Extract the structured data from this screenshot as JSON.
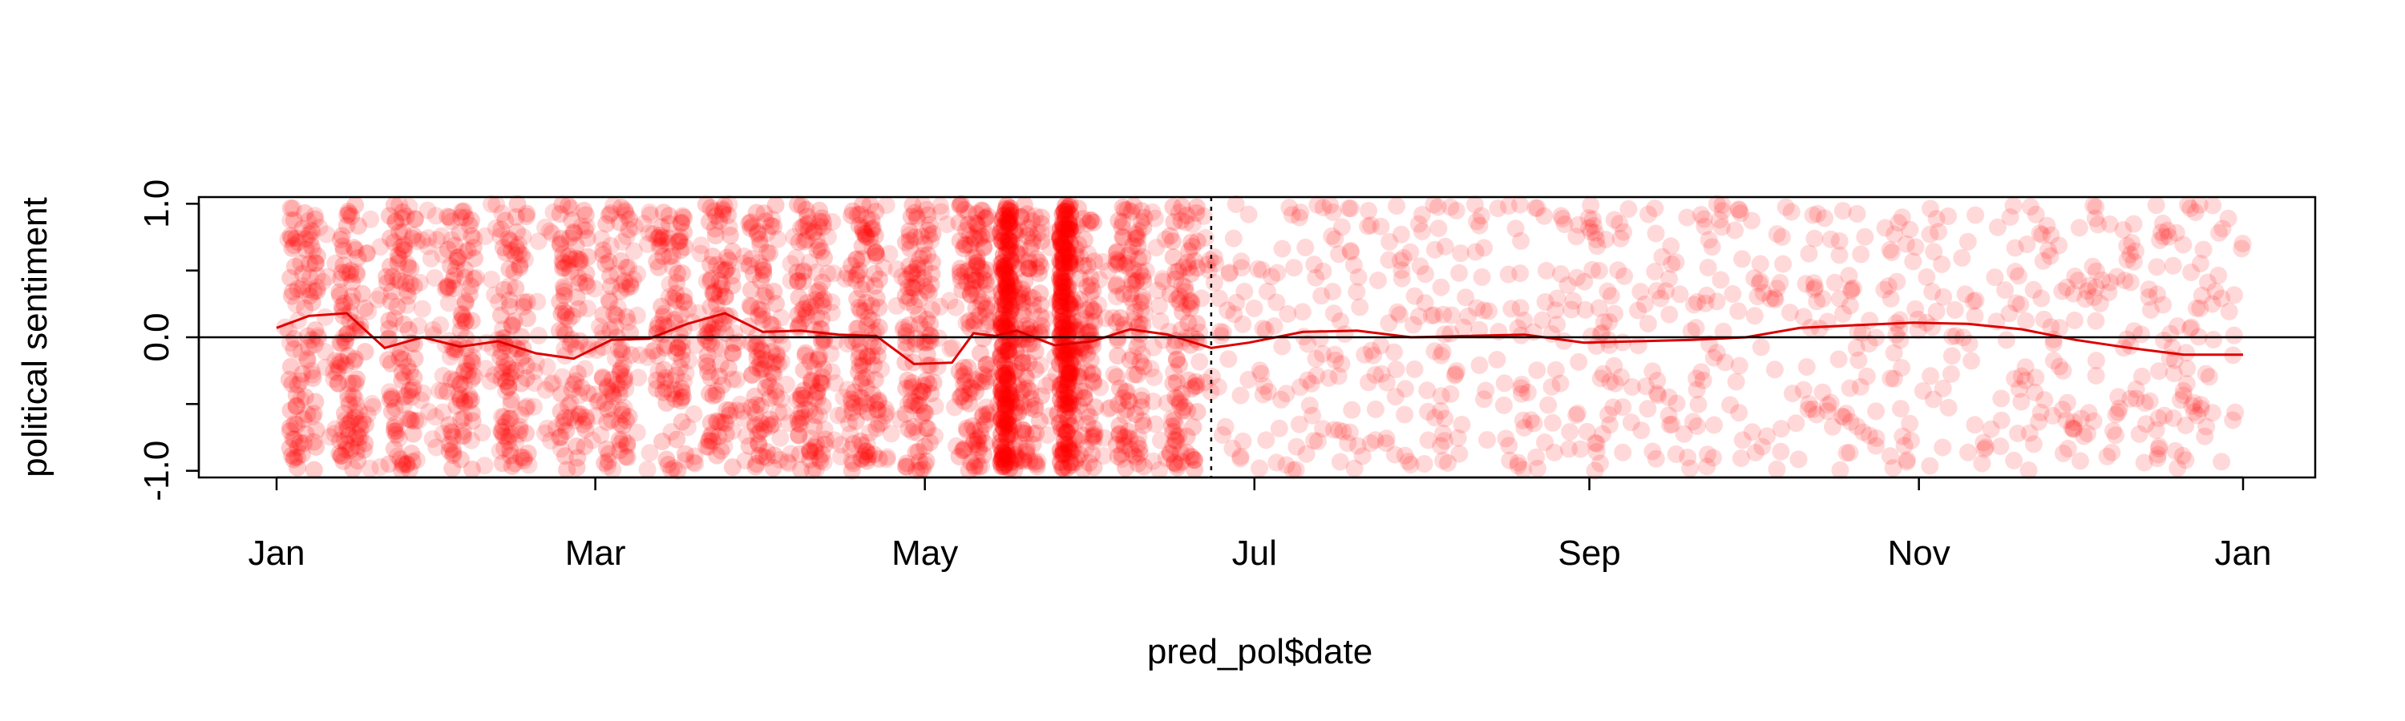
{
  "chart_data": {
    "type": "scatter",
    "title": "",
    "xlabel": "pred_pol$date",
    "ylabel": "political sentiment",
    "x_ticks": [
      "Jan",
      "Mar",
      "May",
      "Jul",
      "Sep",
      "Nov",
      "Jan"
    ],
    "y_ticks": [
      "-1.0",
      "-0.5",
      "0.0",
      "0.5",
      "1.0"
    ],
    "y_tick_labels_shown": [
      "-1.0",
      "0.0",
      "1.0"
    ],
    "ylim": [
      -1.05,
      1.05
    ],
    "xlim": [
      "2017-01-01",
      "2017-12-31"
    ],
    "grid": false,
    "legend": "none",
    "point_color": "#ff0000",
    "point_alpha": 0.15,
    "line_color": "#dd0000",
    "reference_hline": 0,
    "reference_vline": "2017-06-23",
    "series": [
      {
        "type": "line",
        "x": [
          "2017-01-01",
          "2017-01-07",
          "2017-01-14",
          "2017-01-21",
          "2017-01-28",
          "2017-02-04",
          "2017-02-11",
          "2017-02-18",
          "2017-02-25",
          "2017-03-04",
          "2017-03-11",
          "2017-03-18",
          "2017-03-25",
          "2017-04-01",
          "2017-04-08",
          "2017-04-15",
          "2017-04-22",
          "2017-04-29",
          "2017-05-06",
          "2017-05-10",
          "2017-05-14",
          "2017-05-18",
          "2017-05-25",
          "2017-06-01",
          "2017-06-08",
          "2017-06-15",
          "2017-06-23",
          "2017-06-30",
          "2017-07-10",
          "2017-07-20",
          "2017-07-30",
          "2017-08-10",
          "2017-08-20",
          "2017-08-31",
          "2017-09-10",
          "2017-09-20",
          "2017-09-30",
          "2017-10-10",
          "2017-10-20",
          "2017-10-31",
          "2017-11-10",
          "2017-11-20",
          "2017-11-30",
          "2017-12-10",
          "2017-12-20",
          "2017-12-31"
        ],
        "y": [
          0.07,
          0.16,
          0.18,
          -0.08,
          0.0,
          -0.07,
          -0.03,
          -0.12,
          -0.16,
          -0.02,
          -0.01,
          0.1,
          0.18,
          0.04,
          0.05,
          0.02,
          0.01,
          -0.2,
          -0.19,
          0.03,
          0.01,
          0.05,
          -0.06,
          -0.03,
          0.06,
          0.02,
          -0.08,
          -0.04,
          0.04,
          0.05,
          0.0,
          0.01,
          0.02,
          -0.04,
          -0.03,
          -0.02,
          0.0,
          0.07,
          0.09,
          0.11,
          0.1,
          0.06,
          -0.02,
          -0.08,
          -0.13,
          -0.13
        ]
      }
    ],
    "bands": [
      {
        "x": "2017-01-06",
        "density": 0.55
      },
      {
        "x": "2017-01-15",
        "density": 0.6
      },
      {
        "x": "2017-01-24",
        "density": 0.6
      },
      {
        "x": "2017-02-04",
        "density": 0.55
      },
      {
        "x": "2017-02-14",
        "density": 0.55
      },
      {
        "x": "2017-02-25",
        "density": 0.55
      },
      {
        "x": "2017-03-05",
        "density": 0.5
      },
      {
        "x": "2017-03-15",
        "density": 0.55
      },
      {
        "x": "2017-03-24",
        "density": 0.6
      },
      {
        "x": "2017-04-01",
        "density": 0.6
      },
      {
        "x": "2017-04-10",
        "density": 0.7
      },
      {
        "x": "2017-04-20",
        "density": 0.7
      },
      {
        "x": "2017-04-30",
        "density": 0.7
      },
      {
        "x": "2017-05-10",
        "density": 0.85
      },
      {
        "x": "2017-05-20",
        "density": 0.8
      },
      {
        "x": "2017-05-30",
        "density": 0.7
      },
      {
        "x": "2017-06-08",
        "density": 0.65
      },
      {
        "x": "2017-06-18",
        "density": 0.55
      }
    ],
    "dense_stripes": [
      "2017-05-16",
      "2017-05-27"
    ]
  }
}
